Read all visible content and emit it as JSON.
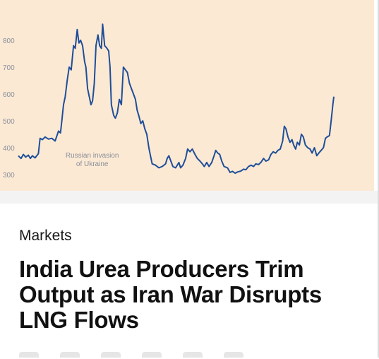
{
  "colors": {
    "chart_background": "#fbe9d4",
    "series_line": "#1f4e99",
    "axis_text": "#8a8f98",
    "annotation_text": "#8a8f98",
    "headline": "#111111"
  },
  "chart_data": {
    "type": "line",
    "title": "",
    "xlabel": "",
    "ylabel": "",
    "yticks": [
      800,
      700,
      600,
      500,
      400,
      300
    ],
    "ylim": [
      280,
      880
    ],
    "xlim": [
      0,
      100
    ],
    "grid": false,
    "annotations": [
      {
        "text_lines": [
          "Russian invasion",
          "of Ukraine"
        ],
        "x": 18.5,
        "y": 340
      }
    ],
    "series": [
      {
        "values": [
          [
            0,
            370
          ],
          [
            0.8,
            360
          ],
          [
            1.5,
            375
          ],
          [
            2.2,
            365
          ],
          [
            3,
            372
          ],
          [
            3.6,
            360
          ],
          [
            4.2,
            370
          ],
          [
            5,
            362
          ],
          [
            6,
            378
          ],
          [
            6.5,
            435
          ],
          [
            7.2,
            430
          ],
          [
            8,
            440
          ],
          [
            9,
            432
          ],
          [
            10,
            435
          ],
          [
            11,
            425
          ],
          [
            12,
            462
          ],
          [
            12.6,
            455
          ],
          [
            13,
            500
          ],
          [
            13.5,
            560
          ],
          [
            14,
            590
          ],
          [
            14.6,
            650
          ],
          [
            15.2,
            700
          ],
          [
            15.8,
            690
          ],
          [
            16.5,
            780
          ],
          [
            17,
            770
          ],
          [
            17.6,
            840
          ],
          [
            18.1,
            790
          ],
          [
            18.6,
            800
          ],
          [
            19.2,
            780
          ],
          [
            19.8,
            720
          ],
          [
            20.2,
            700
          ],
          [
            20.7,
            620
          ],
          [
            21.2,
            590
          ],
          [
            21.7,
            560
          ],
          [
            22.2,
            575
          ],
          [
            22.7,
            640
          ],
          [
            23.2,
            780
          ],
          [
            23.8,
            820
          ],
          [
            24.3,
            780
          ],
          [
            24.8,
            770
          ],
          [
            25.2,
            860
          ],
          [
            25.8,
            780
          ],
          [
            26.5,
            770
          ],
          [
            27,
            760
          ],
          [
            27.4,
            700
          ],
          [
            27.8,
            560
          ],
          [
            28.5,
            520
          ],
          [
            29,
            510
          ],
          [
            29.6,
            530
          ],
          [
            30.2,
            580
          ],
          [
            30.8,
            560
          ],
          [
            31.4,
            700
          ],
          [
            32,
            690
          ],
          [
            32.6,
            680
          ],
          [
            33.2,
            640
          ],
          [
            33.8,
            620
          ],
          [
            34.4,
            600
          ],
          [
            35,
            580
          ],
          [
            35.5,
            540
          ],
          [
            36,
            520
          ],
          [
            36.6,
            490
          ],
          [
            37.2,
            500
          ],
          [
            37.8,
            470
          ],
          [
            38.4,
            450
          ],
          [
            39,
            400
          ],
          [
            39.5,
            370
          ],
          [
            40,
            340
          ],
          [
            41,
            335
          ],
          [
            42,
            325
          ],
          [
            43,
            330
          ],
          [
            44,
            340
          ],
          [
            44.5,
            360
          ],
          [
            45,
            370
          ],
          [
            45.6,
            350
          ],
          [
            46.2,
            330
          ],
          [
            47,
            325
          ],
          [
            48,
            345
          ],
          [
            48.5,
            325
          ],
          [
            49.2,
            335
          ],
          [
            50,
            360
          ],
          [
            50.6,
            395
          ],
          [
            51.3,
            385
          ],
          [
            52,
            395
          ],
          [
            52.8,
            375
          ],
          [
            53.5,
            360
          ],
          [
            54.3,
            350
          ],
          [
            55,
            340
          ],
          [
            55.6,
            330
          ],
          [
            56.3,
            345
          ],
          [
            57,
            330
          ],
          [
            57.8,
            345
          ],
          [
            58.5,
            370
          ],
          [
            59,
            390
          ],
          [
            59.6,
            380
          ],
          [
            60.2,
            375
          ],
          [
            60.8,
            350
          ],
          [
            61.5,
            330
          ],
          [
            62.5,
            325
          ],
          [
            63.3,
            308
          ],
          [
            64,
            312
          ],
          [
            64.8,
            305
          ],
          [
            65.6,
            310
          ],
          [
            66.5,
            313
          ],
          [
            67.3,
            320
          ],
          [
            68,
            318
          ],
          [
            68.8,
            330
          ],
          [
            69.6,
            335
          ],
          [
            70.3,
            330
          ],
          [
            71,
            340
          ],
          [
            71.8,
            337
          ],
          [
            72.5,
            345
          ],
          [
            73.3,
            360
          ],
          [
            74,
            350
          ],
          [
            74.8,
            355
          ],
          [
            75.5,
            375
          ],
          [
            76.2,
            385
          ],
          [
            76.9,
            380
          ],
          [
            77.6,
            390
          ],
          [
            78.3,
            395
          ],
          [
            79,
            425
          ],
          [
            79.5,
            480
          ],
          [
            80,
            470
          ],
          [
            80.6,
            440
          ],
          [
            81.2,
            420
          ],
          [
            81.8,
            430
          ],
          [
            82.3,
            410
          ],
          [
            82.9,
            395
          ],
          [
            83.4,
            420
          ],
          [
            84,
            410
          ],
          [
            84.6,
            450
          ],
          [
            85.2,
            440
          ],
          [
            85.8,
            410
          ],
          [
            86.5,
            400
          ],
          [
            87.2,
            395
          ],
          [
            87.8,
            380
          ],
          [
            88.5,
            400
          ],
          [
            89.2,
            370
          ],
          [
            89.8,
            380
          ],
          [
            90.5,
            390
          ],
          [
            91.2,
            400
          ],
          [
            91.8,
            435
          ],
          [
            92.3,
            440
          ],
          [
            93,
            445
          ],
          [
            93.5,
            500
          ],
          [
            94,
            560
          ],
          [
            94.3,
            590
          ]
        ]
      }
    ]
  },
  "article": {
    "section": "Markets",
    "headline": "India Urea Producers Trim Output as Iran War Disrupts LNG Flows"
  },
  "share_icons": [
    "share-icon",
    "share-icon",
    "share-icon",
    "share-icon",
    "share-icon",
    "share-icon"
  ]
}
